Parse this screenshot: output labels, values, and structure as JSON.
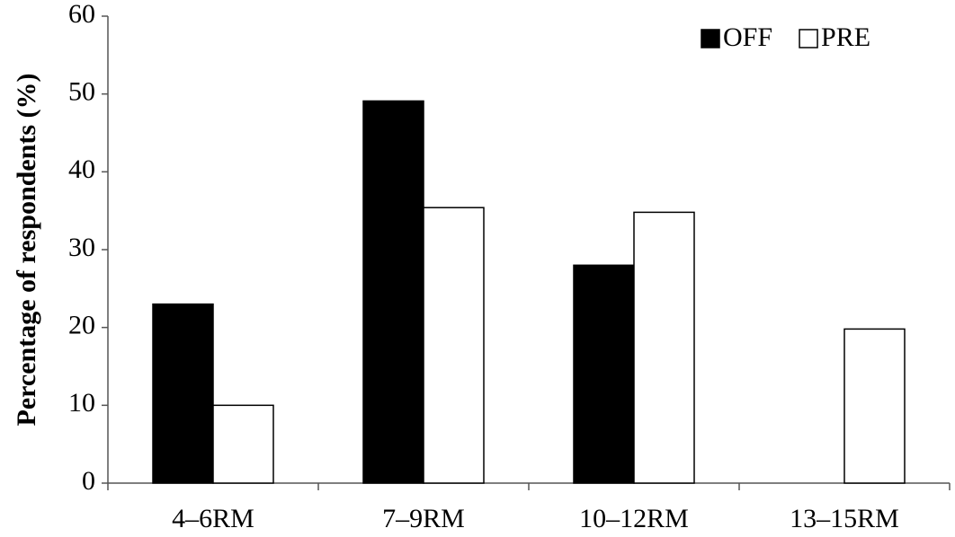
{
  "chart_data": {
    "type": "bar",
    "y_label": "Percentage of respondents (%)",
    "categories": [
      "4–6RM",
      "7–9RM",
      "10–12RM",
      "13–15RM"
    ],
    "series": [
      {
        "name": "OFF",
        "color": "#000000",
        "values": [
          23,
          49.1,
          28,
          0
        ]
      },
      {
        "name": "PRE",
        "color": "#ffffff",
        "values": [
          10,
          35.4,
          34.8,
          19.8
        ]
      }
    ],
    "ylim": [
      0,
      60
    ],
    "yticks": [
      0,
      10,
      20,
      30,
      40,
      50,
      60
    ],
    "legend": "top-right"
  }
}
